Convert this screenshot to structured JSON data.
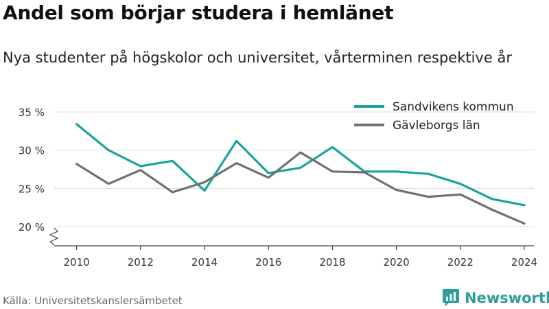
{
  "header": {
    "title": "Andel som börjar studera i hemlänet",
    "subtitle": "Nya studenter på högskolor och universitet, vårterminen respektive år"
  },
  "footer": {
    "source": "Källa: Universitetskanslersämbetet",
    "brand": "Newsworthy"
  },
  "icons": {
    "brand_logo": "newsworthy-logo-icon",
    "axis_break": "axis-break-icon"
  },
  "colors": {
    "sandviken": "#1aa39a",
    "gavleborg": "#707070",
    "grid": "#dddddd",
    "axis": "#444444",
    "brand": "#2f9e97"
  },
  "chart_data": {
    "type": "line",
    "title": "Andel som börjar studera i hemlänet",
    "subtitle": "Nya studenter på högskolor och universitet, vårterminen respektive år",
    "x": [
      2010,
      2011,
      2012,
      2013,
      2014,
      2015,
      2016,
      2017,
      2018,
      2019,
      2020,
      2021,
      2022,
      2023,
      2024
    ],
    "xticks": [
      2010,
      2012,
      2014,
      2016,
      2018,
      2020,
      2022,
      2024
    ],
    "xtick_labels": [
      "2010",
      "2012",
      "2014",
      "2016",
      "2018",
      "2020",
      "2022",
      "2024"
    ],
    "yticks": [
      20,
      25,
      30,
      35
    ],
    "ytick_labels": [
      "20 %",
      "25 %",
      "30 %",
      "35 %"
    ],
    "xlim": [
      2009.3,
      2024.3
    ],
    "ylim": [
      20,
      35
    ],
    "y_axis_break": true,
    "grid": true,
    "legend_position": "top-right",
    "series": [
      {
        "name": "Sandvikens kommun",
        "color": "#1aa39a",
        "values": [
          33.4,
          30.0,
          27.9,
          28.6,
          24.7,
          31.2,
          27.0,
          27.7,
          30.4,
          27.2,
          27.2,
          26.9,
          25.6,
          23.6,
          22.8
        ]
      },
      {
        "name": "Gävleborgs län",
        "color": "#707070",
        "values": [
          28.2,
          25.6,
          27.4,
          24.5,
          25.8,
          28.3,
          26.4,
          29.7,
          27.2,
          27.1,
          24.8,
          23.9,
          24.2,
          22.2,
          20.4
        ]
      }
    ]
  }
}
